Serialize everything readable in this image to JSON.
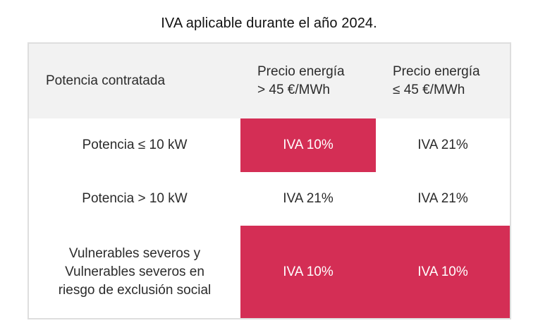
{
  "caption": "IVA aplicable durante el año 2024.",
  "colors": {
    "highlight": "#d42e55",
    "header_bg": "#f2f2f2",
    "border": "#dedede"
  },
  "table": {
    "headers": {
      "col1": "Potencia contratada",
      "col2_line1": "Precio energía",
      "col2_line2": "> 45 €/MWh",
      "col3_line1": "Precio energía",
      "col3_line2": "≤ 45 €/MWh"
    },
    "rows": [
      {
        "label": "Potencia ≤ 10 kW",
        "col2": "IVA 10%",
        "col3": "IVA 21%"
      },
      {
        "label": "Potencia > 10 kW",
        "col2": "IVA 21%",
        "col3": "IVA 21%"
      },
      {
        "label_line1": "Vulnerables severos y",
        "label_line2": "Vulnerables severos en",
        "label_line3": "riesgo de exclusión social",
        "col2": "IVA 10%",
        "col3": "IVA 10%"
      }
    ]
  }
}
